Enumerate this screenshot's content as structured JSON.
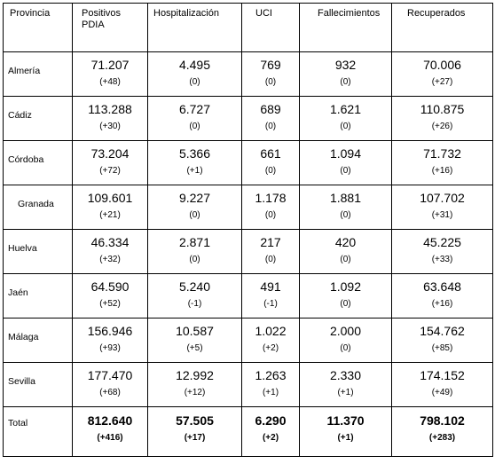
{
  "headers": [
    "Provincia",
    "Positivos\nPDIA",
    "Hospitalización",
    "UCI",
    "Fallecimientos",
    "Recuperados"
  ],
  "rows": [
    {
      "provincia": "Almería",
      "positivos": "71.207",
      "positivos_d": "(+48)",
      "hosp": "4.495",
      "hosp_d": "(0)",
      "uci": "769",
      "uci_d": "(0)",
      "fall": "932",
      "fall_d": "(0)",
      "rec": "70.006",
      "rec_d": "(+27)"
    },
    {
      "provincia": "Cádiz",
      "positivos": "113.288",
      "positivos_d": "(+30)",
      "hosp": "6.727",
      "hosp_d": "(0)",
      "uci": "689",
      "uci_d": "(0)",
      "fall": "1.621",
      "fall_d": "(0)",
      "rec": "110.875",
      "rec_d": "(+26)"
    },
    {
      "provincia": "Córdoba",
      "positivos": "73.204",
      "positivos_d": "(+72)",
      "hosp": "5.366",
      "hosp_d": "(+1)",
      "uci": "661",
      "uci_d": "(0)",
      "fall": "1.094",
      "fall_d": "(0)",
      "rec": "71.732",
      "rec_d": "(+16)"
    },
    {
      "provincia": "Granada",
      "positivos": "109.601",
      "positivos_d": "(+21)",
      "hosp": "9.227",
      "hosp_d": "(0)",
      "uci": "1.178",
      "uci_d": "(0)",
      "fall": "1.881",
      "fall_d": "(0)",
      "rec": "107.702",
      "rec_d": "(+31)"
    },
    {
      "provincia": "Huelva",
      "positivos": "46.334",
      "positivos_d": "(+32)",
      "hosp": "2.871",
      "hosp_d": "(0)",
      "uci": "217",
      "uci_d": "(0)",
      "fall": "420",
      "fall_d": "(0)",
      "rec": "45.225",
      "rec_d": "(+33)"
    },
    {
      "provincia": "Jaén",
      "positivos": "64.590",
      "positivos_d": "(+52)",
      "hosp": "5.240",
      "hosp_d": "(-1)",
      "uci": "491",
      "uci_d": "(-1)",
      "fall": "1.092",
      "fall_d": "(0)",
      "rec": "63.648",
      "rec_d": "(+16)"
    },
    {
      "provincia": "Málaga",
      "positivos": "156.946",
      "positivos_d": "(+93)",
      "hosp": "10.587",
      "hosp_d": "(+5)",
      "uci": "1.022",
      "uci_d": "(+2)",
      "fall": "2.000",
      "fall_d": "(0)",
      "rec": "154.762",
      "rec_d": "(+85)"
    },
    {
      "provincia": "Sevilla",
      "positivos": "177.470",
      "positivos_d": "(+68)",
      "hosp": "12.992",
      "hosp_d": "(+12)",
      "uci": "1.263",
      "uci_d": "(+1)",
      "fall": "2.330",
      "fall_d": "(+1)",
      "rec": "174.152",
      "rec_d": "(+49)"
    }
  ],
  "total": {
    "provincia": "Total",
    "positivos": "812.640",
    "positivos_d": "(+416)",
    "hosp": "57.505",
    "hosp_d": "(+17)",
    "uci": "6.290",
    "uci_d": "(+2)",
    "fall": "11.370",
    "fall_d": "(+1)",
    "rec": "798.102",
    "rec_d": "(+283)"
  }
}
